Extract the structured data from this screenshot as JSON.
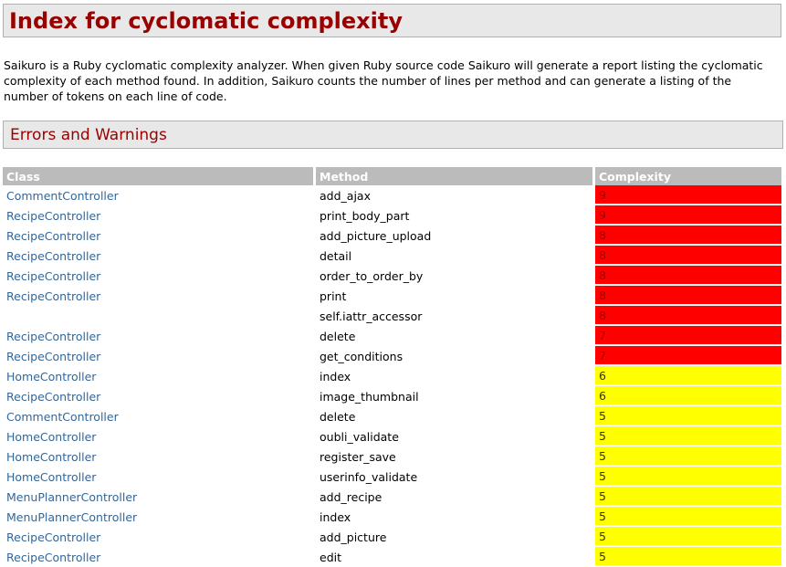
{
  "title": "Index for cyclomatic complexity",
  "intro": "Saikuro is a Ruby cyclomatic complexity analyzer. When given Ruby source code Saikuro will generate a report listing the cyclomatic complexity of each method found. In addition, Saikuro counts the number of lines per method and can generate a listing of the number of tokens on each line of code.",
  "section_title": "Errors and Warnings",
  "colors": {
    "error": "#ff0000",
    "warning": "#ffff00",
    "link": "#336699",
    "heading": "#990000"
  },
  "table": {
    "headers": [
      "Class",
      "Method",
      "Complexity"
    ],
    "rows": [
      {
        "class": "CommentController",
        "method": "add_ajax",
        "complexity": "9",
        "level": "error"
      },
      {
        "class": "RecipeController",
        "method": "print_body_part",
        "complexity": "9",
        "level": "error"
      },
      {
        "class": "RecipeController",
        "method": "add_picture_upload",
        "complexity": "8",
        "level": "error"
      },
      {
        "class": "RecipeController",
        "method": "detail",
        "complexity": "8",
        "level": "error"
      },
      {
        "class": "RecipeController",
        "method": "order_to_order_by",
        "complexity": "8",
        "level": "error"
      },
      {
        "class": "RecipeController",
        "method": "print",
        "complexity": "8",
        "level": "error"
      },
      {
        "class": "",
        "method": "self.iattr_accessor",
        "complexity": "8",
        "level": "error"
      },
      {
        "class": "RecipeController",
        "method": "delete",
        "complexity": "7",
        "level": "error"
      },
      {
        "class": "RecipeController",
        "method": "get_conditions",
        "complexity": "7",
        "level": "error"
      },
      {
        "class": "HomeController",
        "method": "index",
        "complexity": "6",
        "level": "warning"
      },
      {
        "class": "RecipeController",
        "method": "image_thumbnail",
        "complexity": "6",
        "level": "warning"
      },
      {
        "class": "CommentController",
        "method": "delete",
        "complexity": "5",
        "level": "warning"
      },
      {
        "class": "HomeController",
        "method": "oubli_validate",
        "complexity": "5",
        "level": "warning"
      },
      {
        "class": "HomeController",
        "method": "register_save",
        "complexity": "5",
        "level": "warning"
      },
      {
        "class": "HomeController",
        "method": "userinfo_validate",
        "complexity": "5",
        "level": "warning"
      },
      {
        "class": "MenuPlannerController",
        "method": "add_recipe",
        "complexity": "5",
        "level": "warning"
      },
      {
        "class": "MenuPlannerController",
        "method": "index",
        "complexity": "5",
        "level": "warning"
      },
      {
        "class": "RecipeController",
        "method": "add_picture",
        "complexity": "5",
        "level": "warning"
      },
      {
        "class": "RecipeController",
        "method": "edit",
        "complexity": "5",
        "level": "warning"
      }
    ]
  }
}
